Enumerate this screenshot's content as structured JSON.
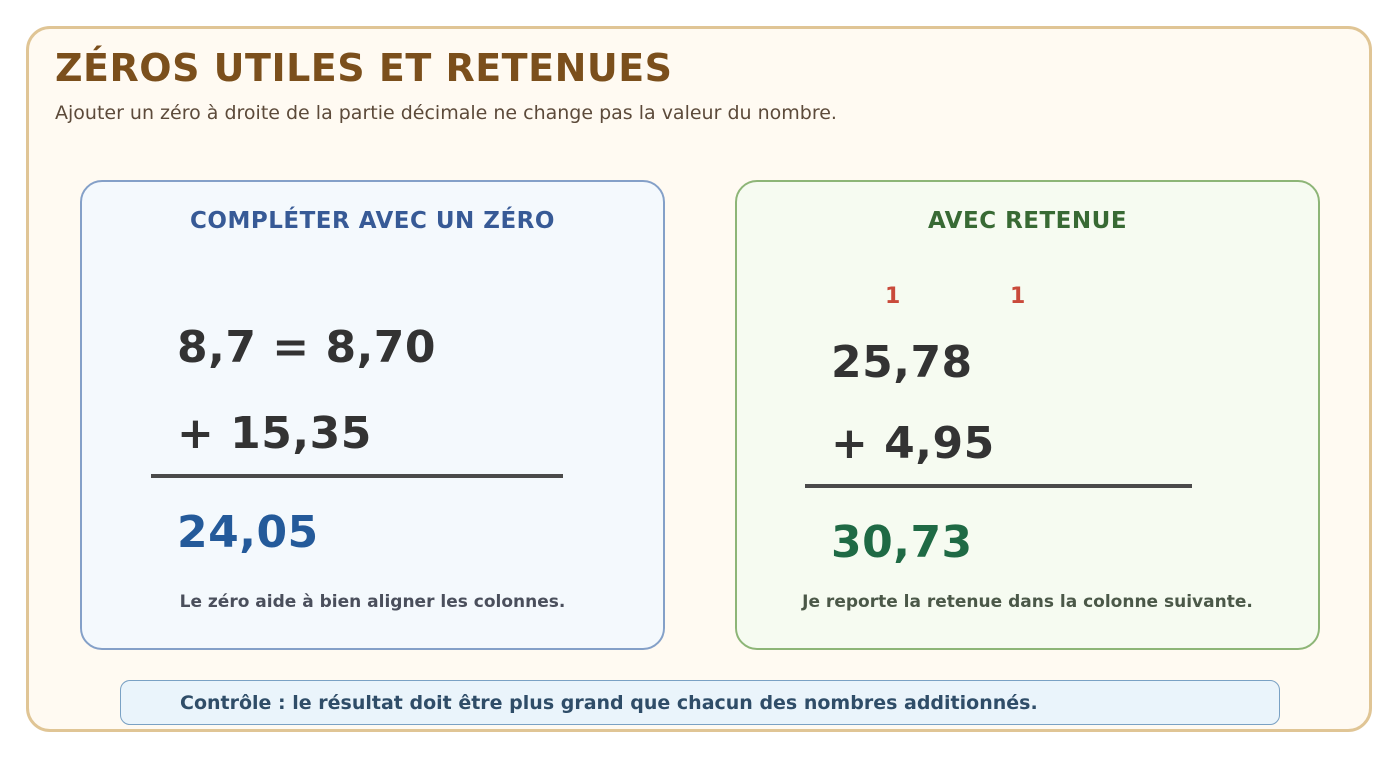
{
  "header": {
    "title": "ZÉROS UTILES ET RETENUES",
    "subtitle": "Ajouter un zéro à droite de la partie décimale ne change pas la valeur du nombre."
  },
  "cards": [
    {
      "title": "COMPLÉTER AVEC UN ZÉRO",
      "line1": "8,7 = 8,70",
      "line2": "+ 15,35",
      "result": "24,05",
      "result_color": "#245a9a",
      "note": "Le zéro aide à bien aligner les colonnes."
    },
    {
      "title": "AVEC RETENUE",
      "carries": [
        "1",
        "1"
      ],
      "line1": "25,78",
      "line2": "+ 4,95",
      "result": "30,73",
      "result_color": "#1f6a45",
      "note": "Je reporte la retenue dans la colonne suivante."
    }
  ],
  "footer": {
    "control": "Contrôle : le résultat doit être plus grand que chacun des nombres additionnés."
  },
  "colors": {
    "frame_border": "#e0c595",
    "title": "#7b4f1c",
    "carry": "#c94a3b"
  }
}
